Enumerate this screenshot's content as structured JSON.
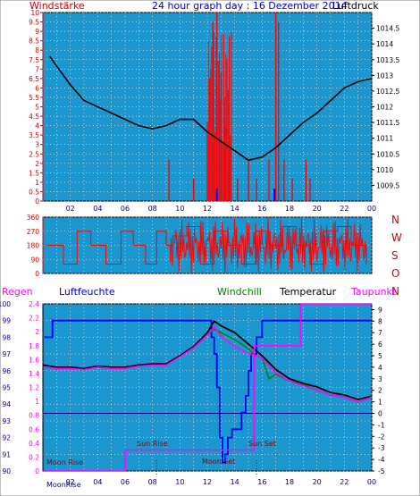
{
  "header": {
    "left_title": "Windstärke",
    "center_title": "24 hour graph day : 16 Dezember 2014",
    "right_title": "Luftdruck"
  },
  "wind_dir_labels": [
    "N",
    "W",
    "S",
    "O",
    "N"
  ],
  "bottom_header": {
    "regen": "Regen",
    "luftfeuchte": "Luftfeuchte",
    "windchill": "Windchill",
    "temperatur": "Temperatur",
    "taupunkt": "Taupunkt"
  },
  "astro": {
    "moon_rise": "Moon Rise",
    "sun_rise": "Sun Rise",
    "moon_set": "Moon Set",
    "sun_set": "Sun Set",
    "moon_rise_axis": "MoonRise"
  },
  "colors": {
    "background": "#ffffff",
    "plot_fill": "#1a97cf",
    "grid": "#ffffff",
    "wind": "#ff0000",
    "pressure": "#000000",
    "humidity": "#0000ff",
    "temperature": "#000000",
    "windchill": "#008000",
    "dewpoint": "#ff00ff",
    "axis_red": "#cc0000",
    "axis_blue": "#00008b",
    "title_blue": "#0000cc"
  },
  "chart_data": [
    {
      "type": "line",
      "title": "24 hour graph day : 16 Dezember 2014",
      "x_ticks": [
        "02",
        "04",
        "06",
        "08",
        "10",
        "12",
        "14",
        "16",
        "18",
        "20",
        "22",
        "00"
      ],
      "xlim": [
        0,
        24
      ],
      "left_axis": {
        "label": "Windstärke",
        "ylim": [
          0,
          10
        ],
        "ticks": [
          "0",
          "0.5",
          "1",
          "1.5",
          "2",
          "2.5",
          "3",
          "3.5",
          "4",
          "4.5",
          "5",
          "5.5",
          "6",
          "6.5",
          "7",
          "7.5",
          "8",
          "8.5",
          "9",
          "9.5",
          "10"
        ]
      },
      "right_axis": {
        "label": "Luftdruck",
        "ylim": [
          1009,
          1015
        ],
        "ticks": [
          "1009.5",
          "1010",
          "1010.5",
          "1011",
          "1011.5",
          "1012",
          "1012.5",
          "1013",
          "1013.5",
          "1014",
          "1014.5"
        ]
      },
      "pressure": {
        "name": "Luftdruck",
        "x": [
          0.5,
          1.0,
          2.0,
          3.0,
          4.0,
          5.0,
          6.0,
          7.0,
          8.0,
          9.0,
          10.0,
          11.0,
          12.0,
          13.0,
          14.0,
          15.0,
          16.0,
          17.0,
          18.0,
          19.0,
          20.0,
          21.0,
          22.0,
          23.0,
          24.0
        ],
        "y": [
          1013.6,
          1013.3,
          1012.7,
          1012.2,
          1012.0,
          1011.8,
          1011.6,
          1011.4,
          1011.3,
          1011.4,
          1011.6,
          1011.6,
          1011.2,
          1010.9,
          1010.6,
          1010.3,
          1010.4,
          1010.7,
          1011.1,
          1011.5,
          1011.8,
          1012.2,
          1012.6,
          1012.8,
          1012.9
        ]
      },
      "wind": {
        "name": "Windstärke",
        "spikes": [
          [
            9.2,
            2.2
          ],
          [
            11.0,
            1.2
          ],
          [
            12.0,
            3.5
          ],
          [
            12.4,
            9.5
          ],
          [
            12.7,
            10
          ],
          [
            13.0,
            6.8
          ],
          [
            13.3,
            4.0
          ],
          [
            13.6,
            2.2
          ],
          [
            14.2,
            1.2
          ],
          [
            15.0,
            2.2
          ],
          [
            15.6,
            1.2
          ],
          [
            16.5,
            2.2
          ],
          [
            17.0,
            10
          ],
          [
            17.2,
            9.5
          ],
          [
            17.6,
            2.2
          ],
          [
            18.2,
            1.2
          ],
          [
            19.2,
            2.2
          ],
          [
            19.5,
            1.2
          ],
          [
            24,
            0
          ]
        ]
      }
    },
    {
      "type": "line",
      "title": "",
      "y_ticks": [
        "360",
        "270",
        "180",
        "90",
        "0"
      ],
      "ylim": [
        0,
        360
      ],
      "series": [
        {
          "name": "",
          "x": [
            0.3,
            1.5,
            2.5,
            3.5,
            4.6,
            5.7,
            6.6,
            7.5,
            8.3,
            9.0,
            9.5,
            10.5,
            11.5,
            12.5,
            13.5,
            14.5,
            15.5,
            16.5,
            17.5,
            18.5,
            19.5,
            20.5,
            21.5,
            22.5,
            23.6
          ],
          "y": [
            180,
            60,
            270,
            180,
            60,
            270,
            180,
            60,
            270,
            180,
            240,
            300,
            60,
            270,
            180,
            60,
            270,
            180,
            300,
            180,
            60,
            270,
            300,
            180,
            60
          ]
        }
      ]
    },
    {
      "type": "line",
      "title": "",
      "x_ticks": [
        "02",
        "04",
        "06",
        "08",
        "10",
        "12",
        "14",
        "16",
        "18",
        "20",
        "22",
        "00"
      ],
      "xlim": [
        0,
        24
      ],
      "left_axis_humidity": {
        "label": "Luftfeuchte",
        "ylim": [
          90,
          100
        ],
        "ticks": [
          "90",
          "91",
          "92",
          "93",
          "94",
          "95",
          "96",
          "97",
          "98",
          "99",
          "100"
        ]
      },
      "left_axis_rain": {
        "label": "Regen",
        "ylim": [
          0,
          2.4
        ],
        "ticks": [
          "0",
          "0.2",
          "0.4",
          "0.6",
          "0.8",
          "1",
          "1.2",
          "1.4",
          "1.6",
          "1.8",
          "2",
          "2.2",
          "2.4"
        ]
      },
      "right_axis": {
        "label": "Temperatur",
        "ylim": [
          -5,
          9.5
        ],
        "ticks": [
          "-5",
          "-4",
          "-3",
          "-2",
          "-1",
          "0",
          "1",
          "2",
          "3",
          "4",
          "5",
          "6",
          "7",
          "8",
          "9"
        ]
      },
      "series": [
        {
          "name": "Luftfeuchte",
          "x": [
            0.1,
            0.6,
            0.7,
            1,
            3,
            5,
            7,
            9,
            10,
            11,
            12,
            12.3,
            12.5,
            12.7,
            12.9,
            13.1,
            13.3,
            13.5,
            13.8,
            14.5,
            14.8,
            15.0,
            15.2,
            15.6,
            16.0,
            24
          ],
          "y": [
            98,
            98,
            99,
            99,
            99,
            99,
            99,
            99,
            99,
            99,
            99,
            98,
            97,
            95,
            92,
            90.5,
            91,
            92,
            92.5,
            93.5,
            94.5,
            96,
            97,
            98,
            99,
            99
          ]
        },
        {
          "name": "Temperatur",
          "x": [
            0,
            1,
            2,
            3,
            4,
            5,
            6,
            7,
            8,
            9,
            10,
            11,
            12,
            12.5,
            13,
            14,
            15,
            16,
            17,
            18,
            19,
            20,
            21,
            22,
            23,
            24
          ],
          "y": [
            4.2,
            4.0,
            4.0,
            3.9,
            4.1,
            4.0,
            4.0,
            4.2,
            4.3,
            4.3,
            5.0,
            5.8,
            7.0,
            8.0,
            7.6,
            7.0,
            6.0,
            5.0,
            3.8,
            3.0,
            2.6,
            2.3,
            1.8,
            1.6,
            1.2,
            1.5
          ]
        },
        {
          "name": "Windchill",
          "x": [
            12,
            12.5,
            13,
            14,
            15,
            15.5,
            16,
            16.5,
            17,
            18,
            19,
            20,
            21,
            22,
            23,
            24
          ],
          "y": [
            6.8,
            7.3,
            7.0,
            6.4,
            5.6,
            5.0,
            4.8,
            3.0,
            3.4,
            2.8,
            2.5,
            2.0,
            1.6,
            1.4,
            1.0,
            1.4
          ]
        },
        {
          "name": "Taupunkt",
          "x": [
            0,
            1,
            2,
            3,
            4,
            5,
            6,
            7,
            8,
            9,
            10,
            11,
            12,
            12.5,
            13,
            14,
            15,
            16,
            17,
            18,
            19,
            20,
            21,
            22,
            23,
            24
          ],
          "y": [
            4.0,
            3.9,
            3.9,
            3.8,
            4.0,
            3.9,
            3.9,
            4.1,
            4.2,
            4.2,
            4.9,
            5.7,
            6.8,
            7.5,
            6.7,
            5.8,
            5.2,
            4.8,
            3.5,
            2.8,
            2.4,
            2.0,
            1.6,
            1.4,
            1.0,
            1.4
          ]
        },
        {
          "name": "Regen",
          "x": [
            0,
            6,
            6.01,
            15.4,
            15.41,
            18.8,
            18.81,
            24
          ],
          "y": [
            0,
            0,
            0.3,
            0.3,
            1.8,
            1.8,
            2.4,
            2.4
          ]
        }
      ]
    }
  ]
}
